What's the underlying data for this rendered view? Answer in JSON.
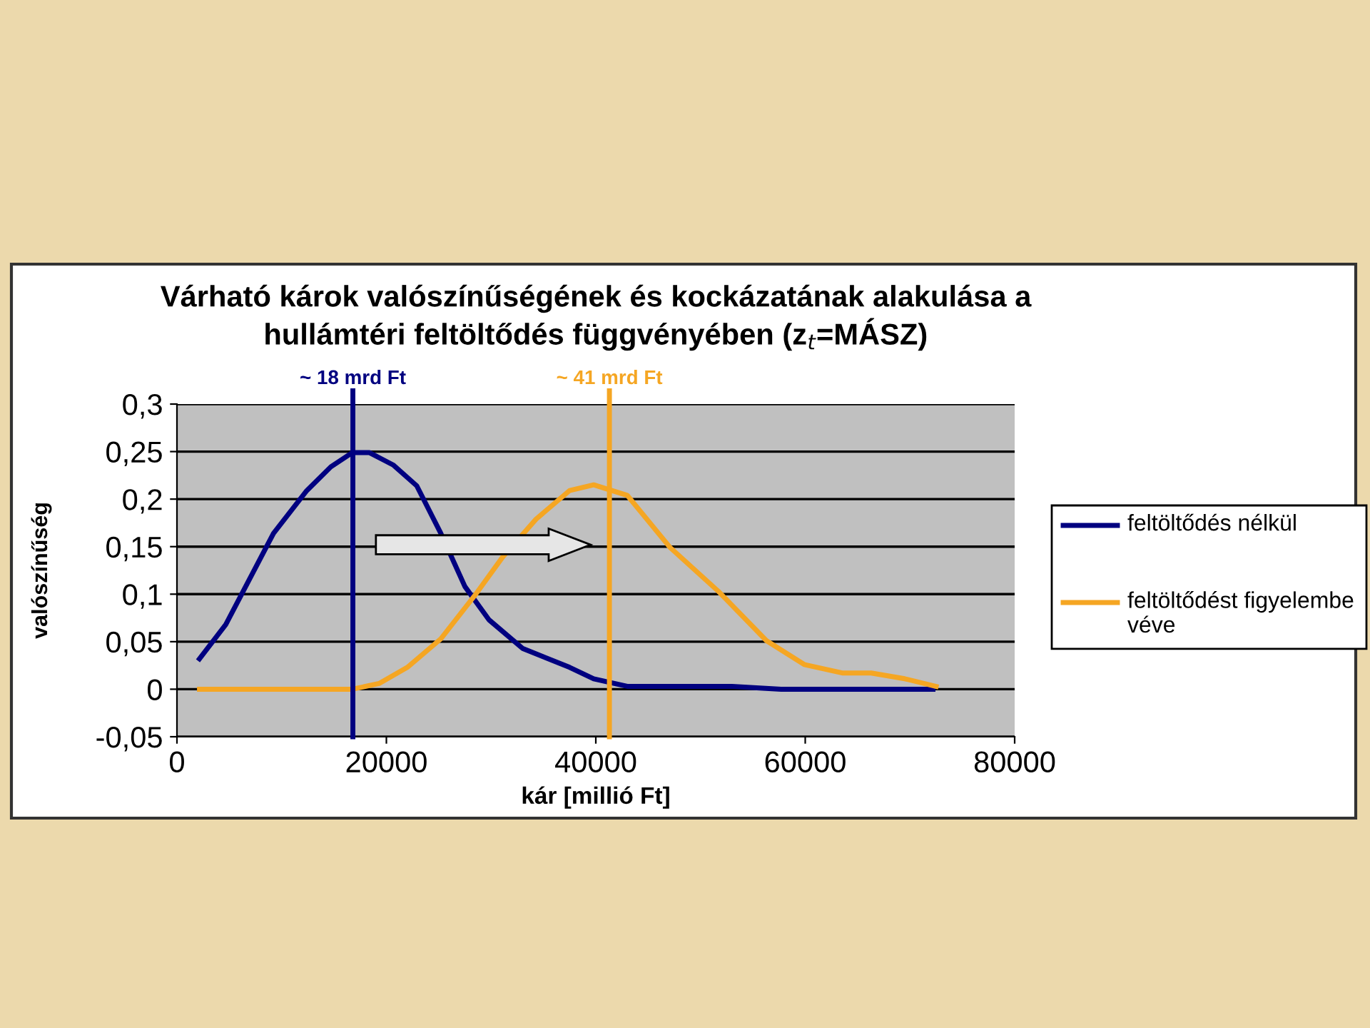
{
  "chart_data": {
    "type": "line",
    "title": "Várható károk valószínűségének és kockázatának alakulása a\nhullámtéri feltöltődés függvényében (z$_{t}$=MÁSZ)",
    "xlabel": "kár [millió Ft]",
    "ylabel": "valószínűség",
    "series": [
      {
        "name": "feltöltődés nélkül",
        "color": "#000080",
        "x": [
          2150,
          4660,
          9220,
          12400,
          14700,
          16760,
          18360,
          20640,
          22900,
          25200,
          27500,
          29800,
          33000,
          37500,
          39800,
          43000,
          53000,
          57700,
          72200
        ],
        "values": [
          0.032,
          0.068,
          0.164,
          0.209,
          0.234,
          0.249,
          0.249,
          0.236,
          0.214,
          0.164,
          0.108,
          0.073,
          0.043,
          0.023,
          0.011,
          0.003,
          0.003,
          0,
          0
        ]
      },
      {
        "name": "feltöltődést figyelembe véve",
        "color": "#f5a623",
        "x": [
          2150,
          16760,
          19300,
          22000,
          25200,
          28400,
          31100,
          34300,
          37500,
          39800,
          43000,
          47100,
          51700,
          56300,
          59900,
          63600,
          66300,
          69500,
          72500
        ],
        "values": [
          0,
          0,
          0.006,
          0.023,
          0.053,
          0.098,
          0.139,
          0.179,
          0.209,
          0.215,
          0.204,
          0.149,
          0.103,
          0.051,
          0.026,
          0.017,
          0.017,
          0.011,
          0.003
        ]
      }
    ],
    "ref_lines": [
      {
        "axis": "x",
        "value": 16800,
        "label": "~ 18 mrd Ft",
        "color": "#000080"
      },
      {
        "axis": "x",
        "value": 41300,
        "label": "~ 41 mrd Ft",
        "color": "#f5a623"
      }
    ],
    "xlim": [
      0,
      80000
    ],
    "xticks": [
      0,
      20000,
      40000,
      60000,
      80000
    ],
    "ylim": [
      -0.05,
      0.3
    ],
    "yticks": [
      {
        "value": -0.05,
        "label": "-0,05"
      },
      {
        "value": 0,
        "label": "0"
      },
      {
        "value": 0.05,
        "label": "0,05"
      },
      {
        "value": 0.1,
        "label": "0,1"
      },
      {
        "value": 0.15,
        "label": "0,15"
      },
      {
        "value": 0.2,
        "label": "0,2"
      },
      {
        "value": 0.25,
        "label": "0,25"
      },
      {
        "value": 0.3,
        "label": "0,3"
      }
    ],
    "grid": "y",
    "legend": "right",
    "marker": "none",
    "line_style": "solid"
  }
}
